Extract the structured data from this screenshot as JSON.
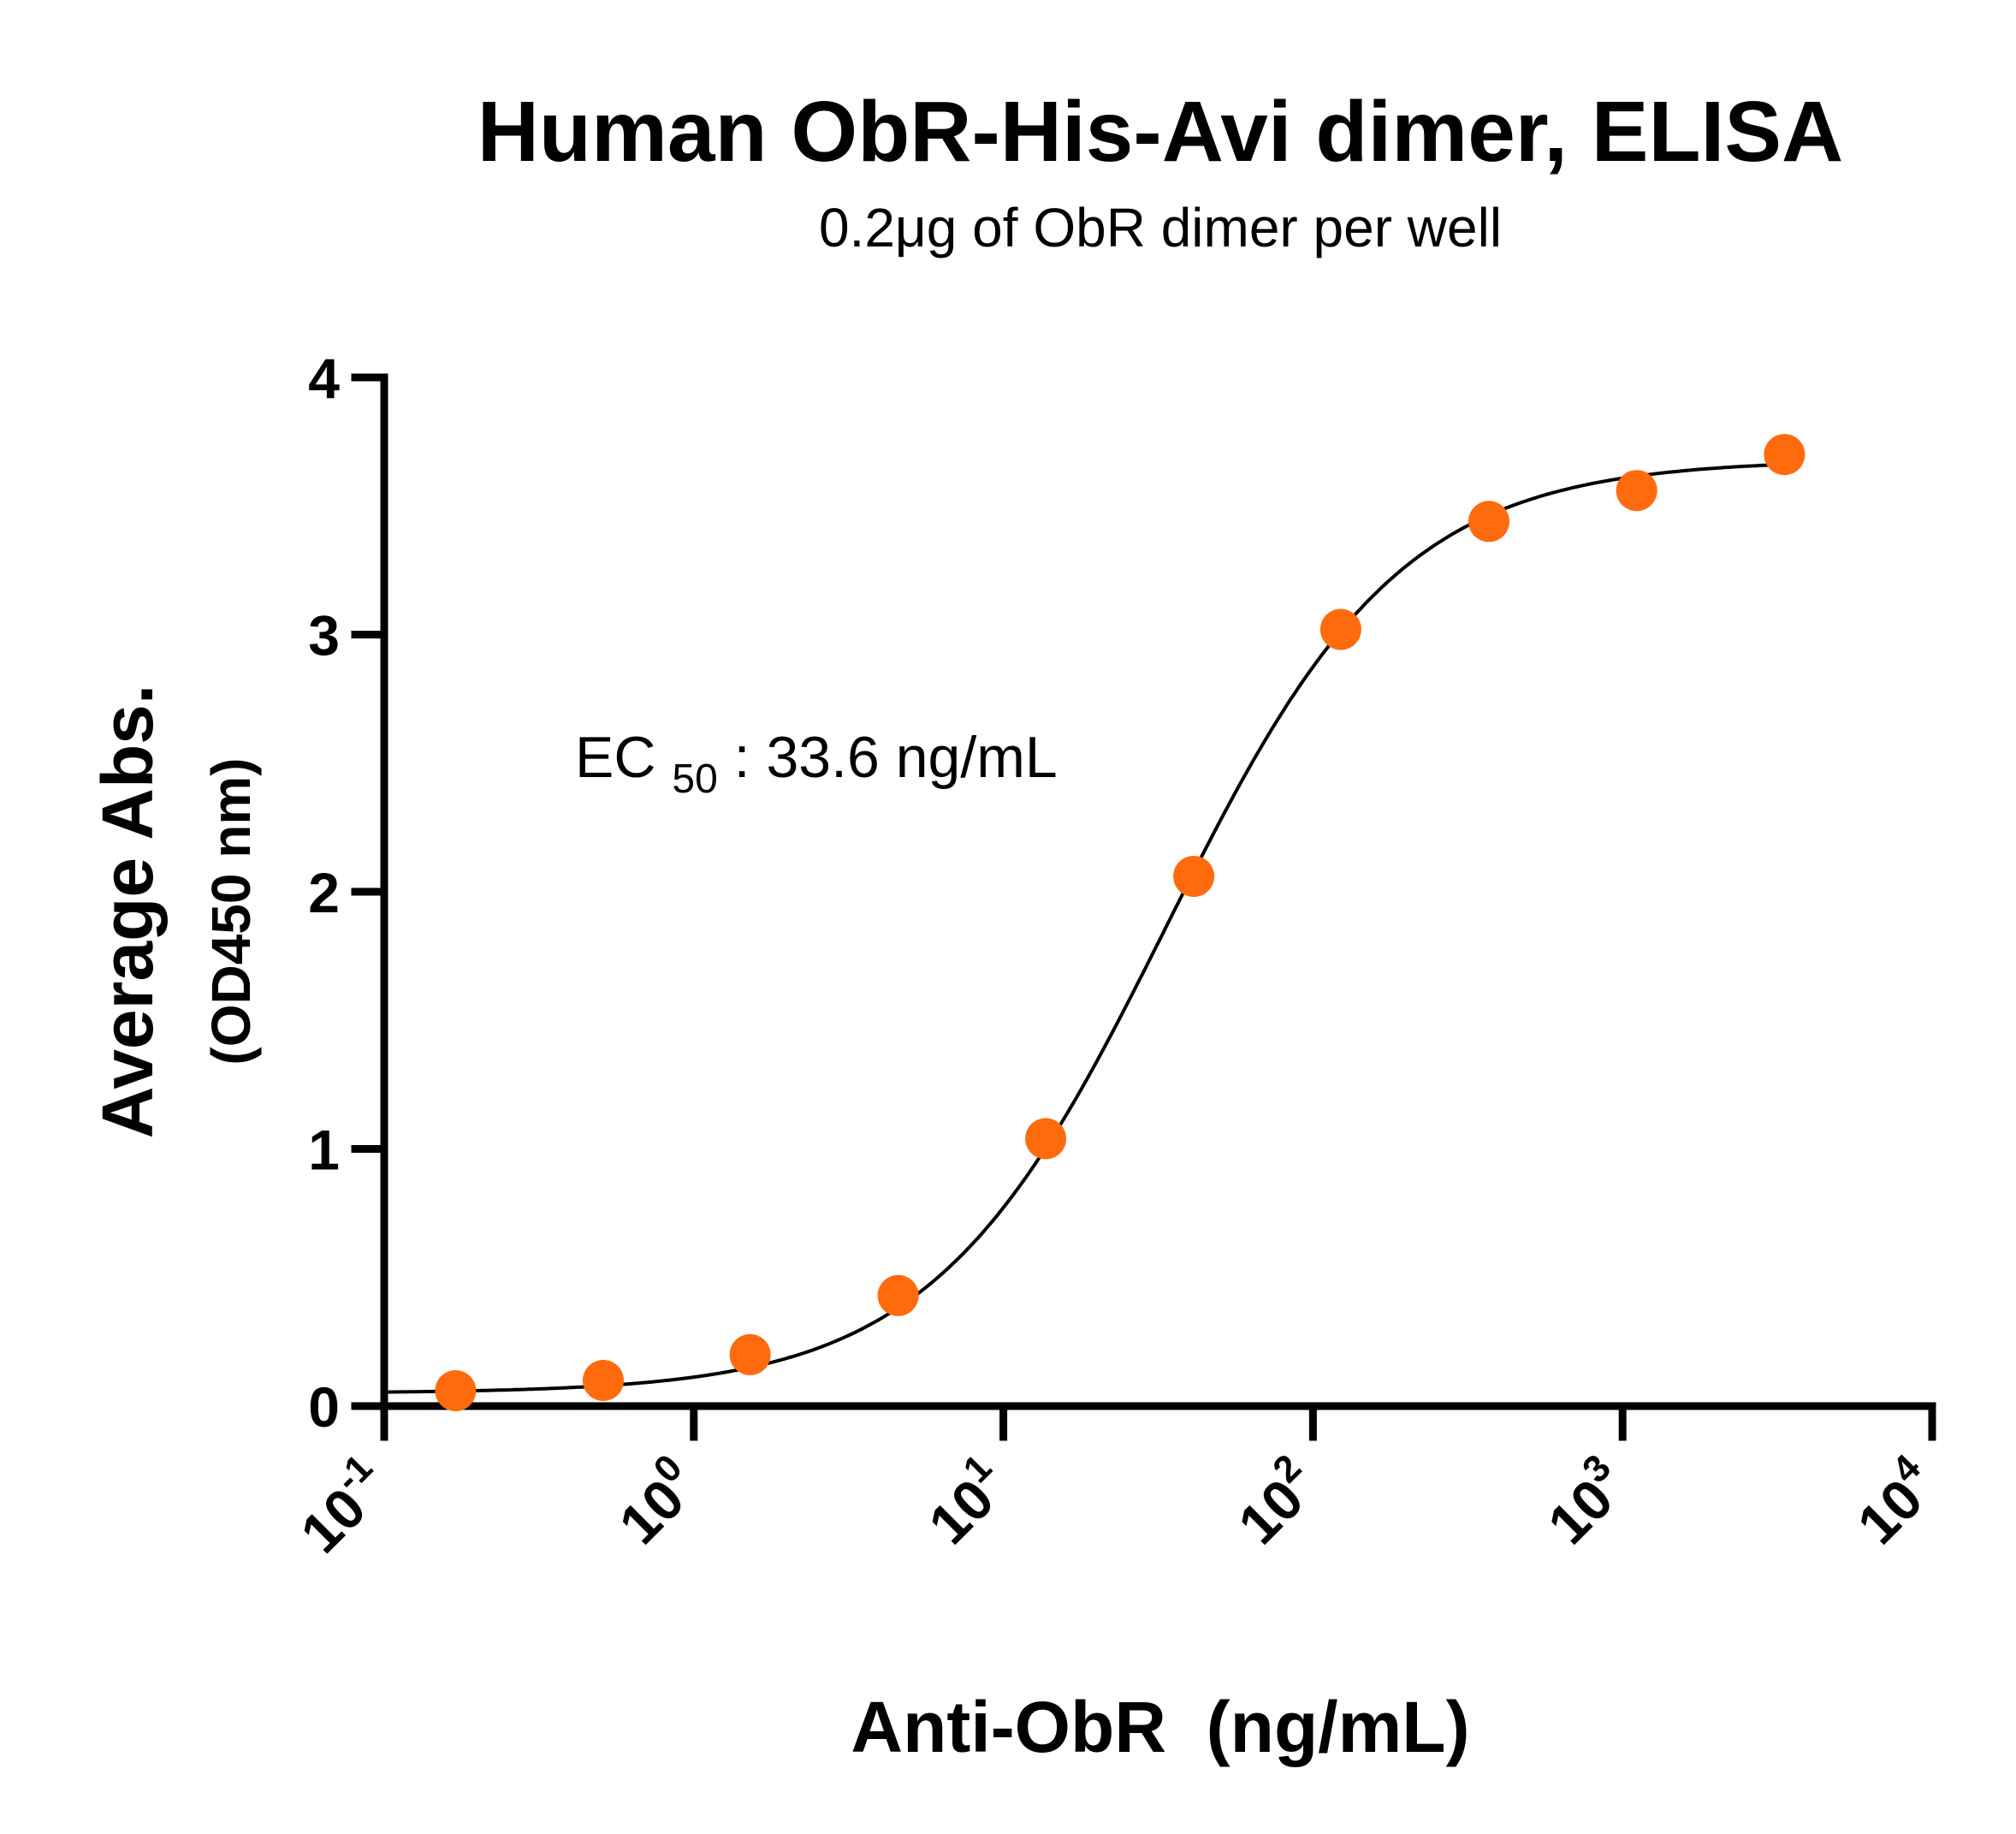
{
  "chart_data": {
    "type": "scatter",
    "title": "Human ObR-His-Avi dimer, ELISA",
    "subtitle": "0.2μg of ObR dimer per well",
    "ylabel": "Average Abs.",
    "ylabel_sub": "(OD450 nm)",
    "xlabel": "Anti-ObR  (ng/mL)",
    "x_scale": "log",
    "xlim": [
      0.1,
      10000
    ],
    "ylim": [
      0,
      4
    ],
    "x_ticks": [
      {
        "base": "10",
        "exp": "-1",
        "value": 0.1
      },
      {
        "base": "10",
        "exp": "0",
        "value": 1
      },
      {
        "base": "10",
        "exp": "1",
        "value": 10
      },
      {
        "base": "10",
        "exp": "2",
        "value": 100
      },
      {
        "base": "10",
        "exp": "3",
        "value": 1000
      },
      {
        "base": "10",
        "exp": "4",
        "value": 10000
      }
    ],
    "y_ticks": [
      "0",
      "1",
      "2",
      "3",
      "4"
    ],
    "annotation": {
      "prefix": "EC",
      "subscript": "50",
      "suffix": ": 33.6 ng/mL"
    },
    "grid": false,
    "marker_color": "#FF6A0D",
    "line_color": "#000000",
    "series": [
      {
        "x": [
          0.17,
          0.51,
          1.52,
          4.57,
          13.7,
          41.2,
          123,
          370,
          1111,
          3333
        ],
        "y": [
          0.06,
          0.1,
          0.2,
          0.43,
          1.04,
          2.06,
          3.02,
          3.44,
          3.56,
          3.7
        ]
      }
    ],
    "fit": {
      "bottom": 0.05,
      "top": 3.68,
      "ec50": 33.6,
      "hill": 1.15
    }
  }
}
